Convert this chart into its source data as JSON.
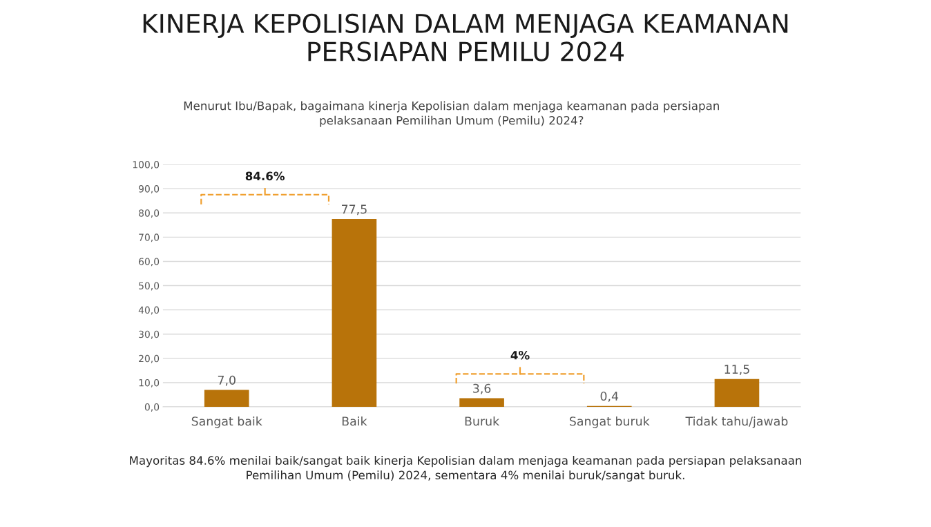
{
  "chart_data": {
    "type": "bar",
    "title": "KINERJA KEPOLISIAN DALAM MENJAGA KEAMANAN\nPERSIAPAN PEMILU 2024",
    "subtitle": "Menurut Ibu/Bapak, bagaimana kinerja Kepolisian dalam menjaga keamanan pada persiapan\npelaksanaan Pemilihan Umum (Pemilu) 2024?",
    "categories": [
      "Sangat baik",
      "Baik",
      "Buruk",
      "Sangat buruk",
      "Tidak tahu/jawab"
    ],
    "values": [
      7.0,
      77.5,
      3.6,
      0.4,
      11.5
    ],
    "value_labels": [
      "7,0",
      "77,5",
      "3,6",
      "0,4",
      "11,5"
    ],
    "color": "#b8730a",
    "ylim": [
      0,
      100
    ],
    "yticks": [
      {
        "value": 0,
        "label": "0,0"
      },
      {
        "value": 10,
        "label": "10,0"
      },
      {
        "value": 20,
        "label": "20,0"
      },
      {
        "value": 30,
        "label": "30,0"
      },
      {
        "value": 40,
        "label": "40,0"
      },
      {
        "value": 50,
        "label": "50,0"
      },
      {
        "value": 60,
        "label": "60,0"
      },
      {
        "value": 70,
        "label": "70,0"
      },
      {
        "value": 80,
        "label": "80,0"
      },
      {
        "value": 90,
        "label": "90,0"
      },
      {
        "value": 100,
        "label": "100,0"
      }
    ],
    "grid": "y",
    "legend": false,
    "annotations": [
      "84.6%",
      "4%",
      "Mayoritas 84.6% menilai baik/sangat baik kinerja Kepolisian dalam menjaga keamanan pada persiapan pelaksanaan\nPemilihan Umum (Pemilu) 2024, sementara 4% menilai buruk/sangat buruk."
    ]
  }
}
